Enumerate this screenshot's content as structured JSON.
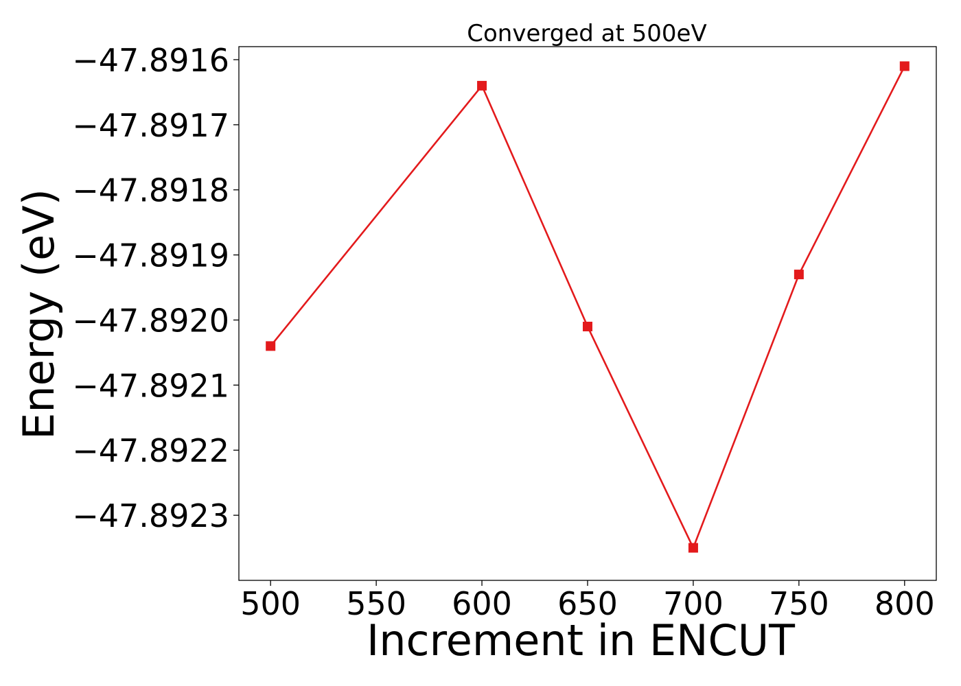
{
  "chart_data": {
    "type": "line",
    "title": "Converged at 500eV",
    "xlabel": "Increment in ENCUT",
    "ylabel": "Energy (eV)",
    "x": [
      500,
      600,
      650,
      700,
      750,
      800
    ],
    "series": [
      {
        "values": [
          -47.89204,
          -47.89164,
          -47.89201,
          -47.89235,
          -47.89193,
          -47.89161
        ],
        "color": "#e31a1c",
        "marker": "square"
      }
    ],
    "xlim": [
      485,
      815
    ],
    "ylim": [
      -47.8924,
      -47.89158
    ],
    "xticks": [
      500,
      550,
      600,
      650,
      700,
      750,
      800
    ],
    "xtick_labels": [
      "500",
      "550",
      "600",
      "650",
      "700",
      "750",
      "800"
    ],
    "yticks": [
      -47.8916,
      -47.8917,
      -47.8918,
      -47.8919,
      -47.892,
      -47.8921,
      -47.8922,
      -47.8923
    ],
    "ytick_labels": [
      "−47.8916",
      "−47.8917",
      "−47.8918",
      "−47.8919",
      "−47.8920",
      "−47.8921",
      "−47.8922",
      "−47.8923"
    ],
    "grid": false,
    "legend": "none"
  }
}
